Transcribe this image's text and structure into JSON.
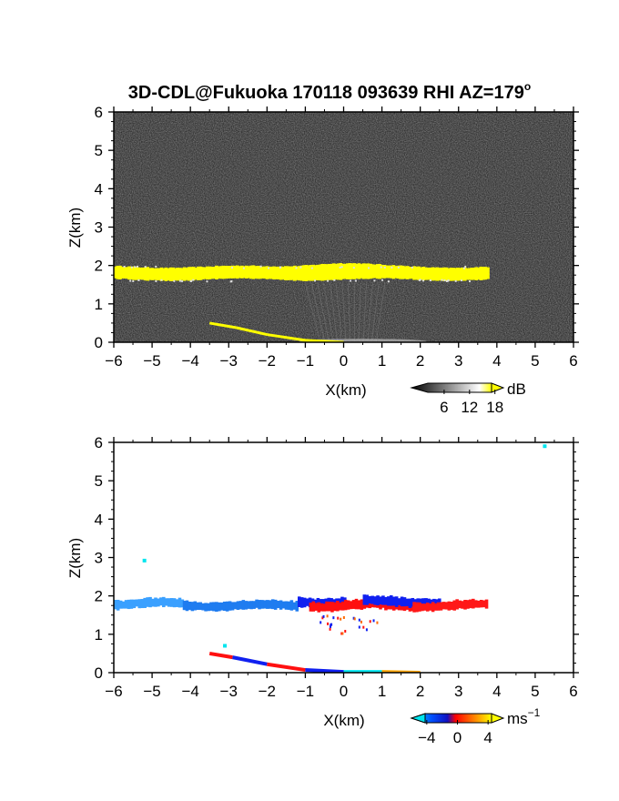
{
  "chart_data": [
    {
      "type": "heatmap",
      "title": "3D-CDL@Fukuoka 170118 093639 RHI AZ=179",
      "title_superscript": "o",
      "xlabel": "X(km)",
      "ylabel": "Z(km)",
      "xlim": [
        -6,
        6
      ],
      "ylim": [
        0,
        6
      ],
      "x_ticks": [
        "−6",
        "−5",
        "−4",
        "−3",
        "−2",
        "−1",
        "0",
        "1",
        "2",
        "3",
        "4",
        "5",
        "6"
      ],
      "y_ticks": [
        "0",
        "1",
        "2",
        "3",
        "4",
        "5",
        "6"
      ],
      "background_color": "#262626",
      "band_color": "#ffff00",
      "layer": {
        "x_start": -6.0,
        "x_end": 3.75,
        "z_center": 1.8,
        "thickness": 0.15,
        "peak_x": -0.3,
        "peak_top": 2.05
      },
      "near_surface_trace": {
        "x": [
          -3.5,
          -2.8,
          -2.0,
          -1.0,
          0.0
        ],
        "z": [
          0.5,
          0.38,
          0.2,
          0.05,
          0.0
        ]
      },
      "colorbar": {
        "ticks": [
          "6",
          "12",
          "18"
        ],
        "unit": "dB",
        "range": [
          0,
          20
        ],
        "colors": [
          "#000000",
          "#ffffff",
          "#ffff00"
        ]
      }
    },
    {
      "type": "heatmap",
      "xlabel": "X(km)",
      "ylabel": "Z(km)",
      "xlim": [
        -6,
        6
      ],
      "ylim": [
        0,
        6
      ],
      "x_ticks": [
        "−6",
        "−5",
        "−4",
        "−3",
        "−2",
        "−1",
        "0",
        "1",
        "2",
        "3",
        "4",
        "5",
        "6"
      ],
      "y_ticks": [
        "0",
        "1",
        "2",
        "3",
        "4",
        "5",
        "6"
      ],
      "layer_segments": [
        {
          "x_start": -6.0,
          "x_end": -4.2,
          "z_center": 1.8,
          "color": "#3aa0ff"
        },
        {
          "x_start": -4.2,
          "x_end": -1.2,
          "z_center": 1.75,
          "color": "#1f7cf0"
        },
        {
          "x_start": -1.2,
          "x_end": 0.0,
          "z_center": 1.85,
          "color": "#1020f0"
        },
        {
          "x_start": -0.9,
          "x_end": 1.8,
          "z_center": 1.75,
          "color": "#ff1010"
        },
        {
          "x_start": 0.5,
          "x_end": 2.5,
          "z_center": 1.85,
          "color": "#1020f0"
        },
        {
          "x_start": 1.8,
          "x_end": 3.75,
          "z_center": 1.75,
          "color": "#ff1818"
        }
      ],
      "isolated_points": [
        {
          "x": -5.2,
          "z": 2.92,
          "color": "#00e5ee"
        },
        {
          "x": 5.25,
          "z": 5.9,
          "color": "#00e5ee"
        },
        {
          "x": -3.1,
          "z": 0.7,
          "color": "#00e5ee"
        }
      ],
      "near_surface_trace": {
        "x": [
          -3.5,
          -2.9,
          -2.0,
          -1.0,
          0.0,
          1.0,
          2.0
        ],
        "z": [
          0.5,
          0.4,
          0.22,
          0.07,
          0.02,
          0.02,
          0.0
        ],
        "colors": [
          "#ff1010",
          "#1020f0",
          "#ff1010",
          "#1020f0",
          "#00e5ee",
          "#ffa500",
          "#ffd700"
        ]
      },
      "colorbar": {
        "ticks": [
          "−4",
          "0",
          "4"
        ],
        "unit": "ms",
        "unit_superscript": "−1",
        "range": [
          -6,
          6
        ],
        "colors": [
          "#00e5ee",
          "#0050ff",
          "#1010c0",
          "#ff0000",
          "#ff8c00",
          "#ffff00"
        ]
      }
    }
  ]
}
